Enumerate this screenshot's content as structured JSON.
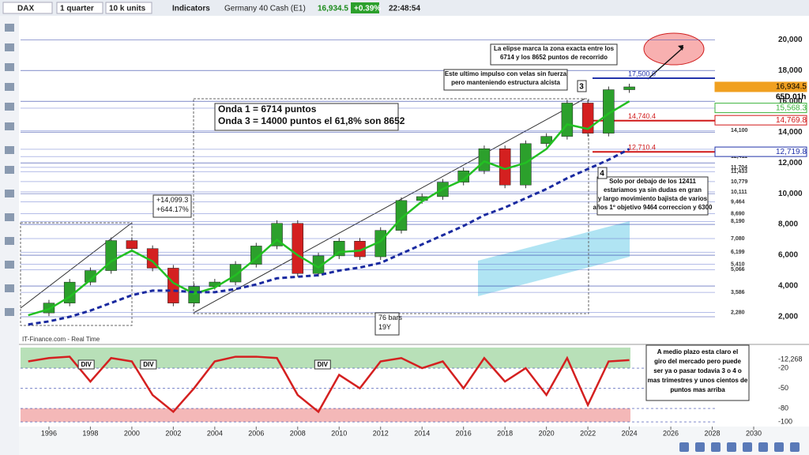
{
  "toolbar": {
    "symbol": "DAX",
    "period": "1 quarter",
    "units": "10 k units",
    "indicators": "Indicators",
    "instrument": "Germany 40 Cash (E1)",
    "price": "16,934.5",
    "change": "+0.39%",
    "time": "22:48:54"
  },
  "chart": {
    "xlim": [
      1994.63,
      2030.8
    ],
    "ylim": [
      512,
      21450
    ],
    "price_ticks": [
      {
        "value": 20000,
        "label": "20,000"
      },
      {
        "value": 18000,
        "label": "18,000"
      },
      {
        "value": 16000,
        "label": "16,000"
      },
      {
        "value": 14000,
        "label": "14,000"
      },
      {
        "value": 12000,
        "label": "12,000"
      },
      {
        "value": 10000,
        "label": "10,000"
      },
      {
        "value": 8000,
        "label": "8,000"
      },
      {
        "value": 6000,
        "label": "6,000"
      },
      {
        "value": 4000,
        "label": "4,000"
      },
      {
        "value": 2000,
        "label": "2,000"
      }
    ],
    "time_ticks": [
      1996,
      1998,
      2000,
      2002,
      2004,
      2006,
      2008,
      2010,
      2012,
      2014,
      2016,
      2018,
      2020,
      2022,
      2024,
      2026,
      2028,
      2030
    ],
    "years": [
      1995,
      1996,
      1997,
      1998,
      1999,
      2000,
      2001,
      2002,
      2003,
      2004,
      2005,
      2006,
      2007,
      2008,
      2009,
      2010,
      2011,
      2012,
      2013,
      2014,
      2015,
      2016,
      2017,
      2018,
      2019,
      2020,
      2021,
      2022,
      2023,
      2024
    ],
    "closes": [
      2250,
      2890,
      4250,
      5000,
      6950,
      6430,
      5160,
      2890,
      3965,
      4256,
      5408,
      6597,
      8067,
      4810,
      5957,
      6914,
      5898,
      7612,
      9552,
      9806,
      10743,
      11481,
      12918,
      10559,
      13249,
      13719,
      15885,
      13924,
      16752,
      16934.5
    ],
    "ma_fast": [
      2100,
      2500,
      3300,
      4400,
      5600,
      6300,
      5600,
      4200,
      3500,
      3900,
      4700,
      5800,
      7000,
      6000,
      5200,
      6200,
      6300,
      6900,
      8400,
      9500,
      10300,
      10900,
      12100,
      11600,
      12000,
      12900,
      14500,
      14200,
      15200,
      16000
    ],
    "ma_slow": [
      1500,
      1700,
      2000,
      2400,
      2900,
      3400,
      3700,
      3700,
      3600,
      3600,
      3800,
      4100,
      4500,
      4600,
      4700,
      5000,
      5200,
      5500,
      6100,
      6700,
      7300,
      7900,
      8600,
      9100,
      9700,
      10300,
      11000,
      11600,
      12200,
      12900
    ],
    "levels": [
      {
        "value": 15550,
        "label": "15,550"
      },
      {
        "value": 14100,
        "label": "14,100"
      },
      {
        "value": 12881,
        "label": "12,881"
      },
      {
        "value": 12411,
        "label": "12,411"
      },
      {
        "value": 11704,
        "label": "11,704"
      },
      {
        "value": 11433,
        "label": "11,433"
      },
      {
        "value": 10779,
        "label": "10,779"
      },
      {
        "value": 10111,
        "label": "10,111"
      },
      {
        "value": 9464,
        "label": "9,464"
      },
      {
        "value": 8690,
        "label": "8,690"
      },
      {
        "value": 8190,
        "label": "8,190"
      },
      {
        "value": 7080,
        "label": "7,080"
      },
      {
        "value": 6199,
        "label": "6,199"
      },
      {
        "value": 5410,
        "label": "5,410"
      },
      {
        "value": 5066,
        "label": "5,066"
      },
      {
        "value": 3586,
        "label": "3,586"
      },
      {
        "value": 2280,
        "label": "2,280"
      }
    ],
    "key_lines": [
      {
        "value": 17500,
        "label": "17,500.0",
        "color": "#2233aa"
      },
      {
        "value": 14740.4,
        "label": "14,740.4",
        "color": "#d01818"
      },
      {
        "value": 12710.4,
        "label": "12,710.4",
        "color": "#d01818"
      }
    ],
    "tags": [
      {
        "value": 16934.5,
        "label": "16,934.5",
        "color": "#f0a020"
      },
      {
        "value": 15568.3,
        "label": "15,568.3",
        "color": "#3cb43c"
      },
      {
        "value": 14769.8,
        "label": "14,769.8",
        "color": "#d01818"
      },
      {
        "value": 12719.8,
        "label": "12,719.8",
        "color": "#2233aa"
      }
    ],
    "timer": "65D 01h",
    "ellipse_note": [
      "La elipse marca la zona exacta entre los",
      "6714 y los 8652 puntos de recorrido"
    ],
    "impulse_note": [
      "Este ultimo impulso con velas sin fuerza",
      "pero manteniendo estructura alcista"
    ],
    "waves_note": [
      "Onda 1 =    6714 puntos",
      "Onda 3 = 14000 puntos  el 61,8% son 8652"
    ],
    "bear_note": [
      "Solo por debajo de los 12411",
      "estariamos ya sin dudas en gran",
      "y largo movimiento bajista de varios",
      "años 1º objetivo 9464 correccion y 6300"
    ],
    "measure": [
      "+14,099.3",
      "+644.17%"
    ],
    "bars_box": [
      "76 bars",
      "19Y"
    ],
    "wave3": "3",
    "wave4": "4",
    "source": "IT-Finance.com - Real Time"
  },
  "oscillator": {
    "ylim": [
      -107,
      10.6
    ],
    "ticks": [
      -20,
      -50,
      -80,
      -100
    ],
    "top_label": "-12,268",
    "values": [
      -10,
      -5,
      -3,
      -40,
      -5,
      -10,
      -60,
      -85,
      -50,
      -10,
      -3,
      -3,
      -5,
      -60,
      -85,
      -30,
      -50,
      -10,
      -5,
      -20,
      -10,
      -50,
      -5,
      -40,
      -20,
      -60,
      -5,
      -75,
      -10,
      -8
    ],
    "divs": [
      "DIV",
      "DIV",
      "DIV"
    ],
    "note": [
      "A medio plazo esta claro el",
      "giro del mercado pero puede",
      "ser ya o pasar todavia 3 o 4 o",
      "mas trimestres y unos cientos de",
      "puntos mas arriba"
    ]
  }
}
